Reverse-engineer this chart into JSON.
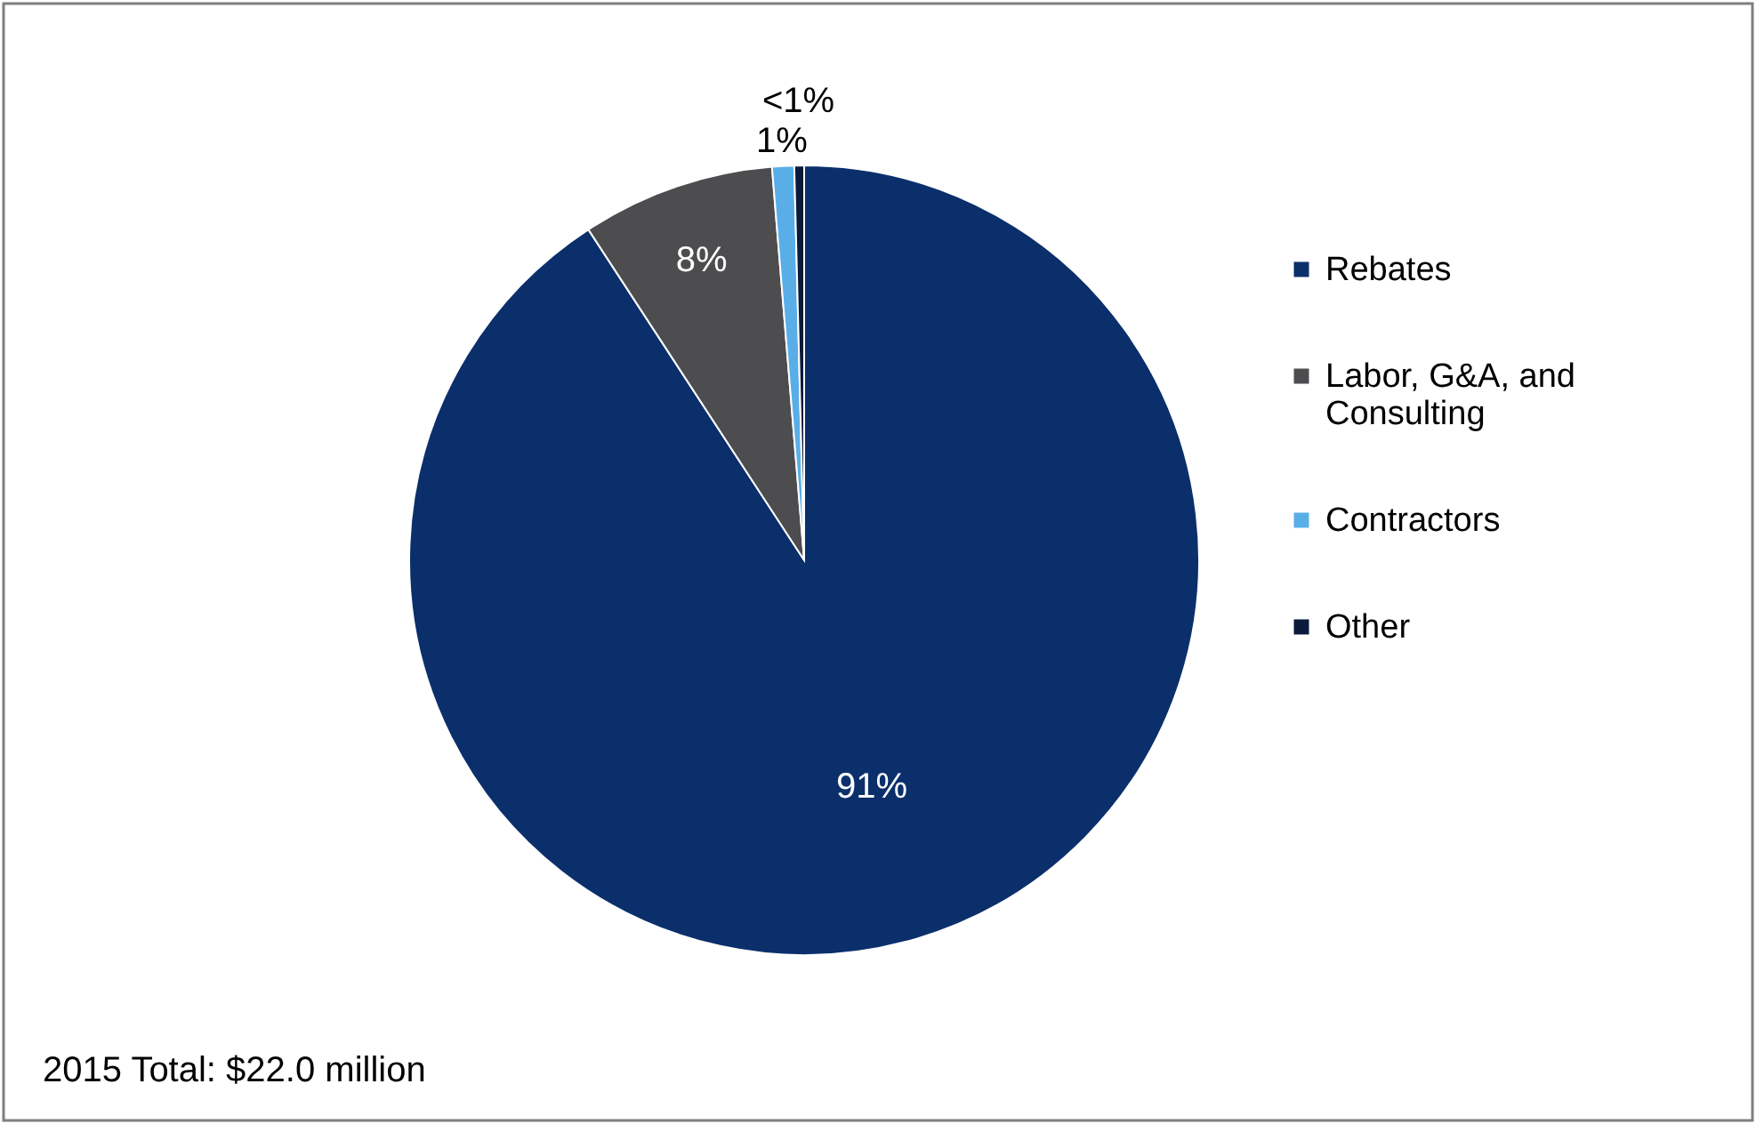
{
  "chart_data": {
    "type": "pie",
    "categories": [
      "Rebates",
      "Labor, G&A, and Consulting",
      "Contractors",
      "Other"
    ],
    "values": [
      90.8,
      7.9,
      0.9,
      0.4
    ],
    "value_labels": [
      "91%",
      "8%",
      "1%",
      "<1%"
    ],
    "colors": [
      "#0b2f6b",
      "#4d4d4f",
      "#5aaee8",
      "#0a1a3a"
    ],
    "legend": "right",
    "annotations": [
      "2015 Total: $22.0 million"
    ]
  }
}
